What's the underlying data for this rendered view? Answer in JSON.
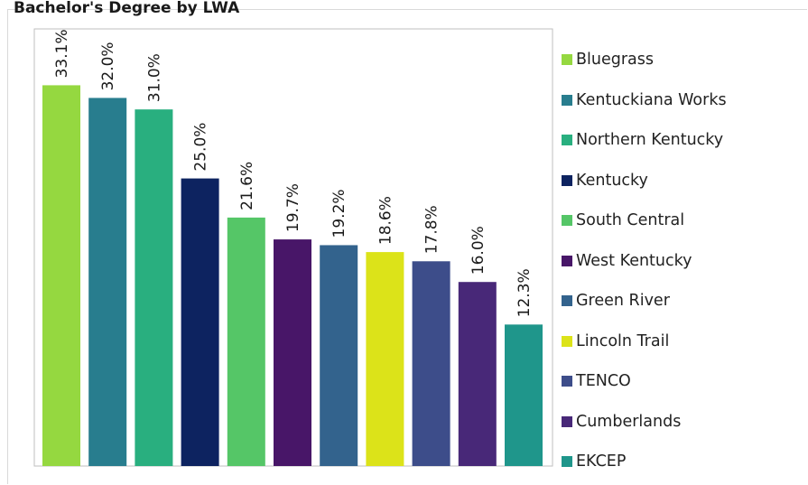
{
  "title": "Bachelor's Degree by LWA",
  "chart_data": {
    "type": "bar",
    "categories": [
      "Bluegrass",
      "Kentuckiana Works",
      "Northern Kentucky",
      "Kentucky",
      "South Central",
      "West Kentucky",
      "Green River",
      "Lincoln Trail",
      "TENCO",
      "Cumberlands",
      "EKCEP"
    ],
    "values": [
      33.1,
      32.0,
      31.0,
      25.0,
      21.6,
      19.7,
      19.2,
      18.6,
      17.8,
      16.0,
      12.3
    ],
    "labels": [
      "33.1%",
      "32.0%",
      "31.0%",
      "25.0%",
      "21.6%",
      "19.7%",
      "19.2%",
      "18.6%",
      "17.8%",
      "16.0%",
      "12.3%"
    ],
    "colors": [
      "#95d840",
      "#287d8e",
      "#29af7f",
      "#0d2360",
      "#55c667",
      "#481668",
      "#33638d",
      "#dce319",
      "#3d4d8a",
      "#482878",
      "#1f968b"
    ],
    "ylim": [
      0,
      38
    ],
    "grid": false,
    "legend_position": "right"
  }
}
